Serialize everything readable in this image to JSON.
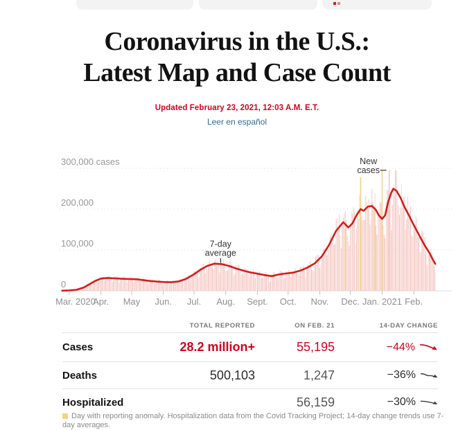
{
  "header": {
    "title_line1": "Coronavirus in the U.S.:",
    "title_line2": "Latest Map and Case Count",
    "updated": "Updated February 23, 2021, 12:03 A.M. E.T.",
    "language_link": "Leer en español"
  },
  "chart_data": {
    "type": "bar",
    "description": "Daily reported new coronavirus cases in the U.S. (bars) with 7-day average (line)",
    "y_axis": {
      "ticks": [
        [
          "300,000 cases",
          300000
        ],
        [
          "200,000",
          200000
        ],
        [
          "100,000",
          100000
        ],
        [
          "0",
          0
        ]
      ],
      "ylim": [
        0,
        320000
      ],
      "grid": "dotted"
    },
    "x_axis": {
      "ticks": [
        [
          "Mar. 2020",
          "2020-03-01"
        ],
        [
          "Apr.",
          "2020-04-01"
        ],
        [
          "May",
          "2020-05-01"
        ],
        [
          "Jun.",
          "2020-06-01"
        ],
        [
          "Jul.",
          "2020-07-01"
        ],
        [
          "Aug.",
          "2020-08-01"
        ],
        [
          "Sept.",
          "2020-09-01"
        ],
        [
          "Oct.",
          "2020-10-01"
        ],
        [
          "Nov.",
          "2020-11-01"
        ],
        [
          "Dec.",
          "2020-12-01"
        ],
        [
          "Jan. 2021",
          "2021-01-01"
        ],
        [
          "Feb.",
          "2021-02-01"
        ]
      ]
    },
    "line_series": {
      "name": "7-day average",
      "points": [
        [
          "2020-02-23",
          300
        ],
        [
          "2020-03-01",
          1000
        ],
        [
          "2020-03-08",
          2500
        ],
        [
          "2020-03-15",
          8000
        ],
        [
          "2020-03-22",
          18000
        ],
        [
          "2020-03-27",
          25000
        ],
        [
          "2020-04-01",
          30000
        ],
        [
          "2020-04-07",
          31500
        ],
        [
          "2020-04-14",
          30500
        ],
        [
          "2020-04-21",
          29500
        ],
        [
          "2020-04-28",
          29000
        ],
        [
          "2020-05-05",
          28500
        ],
        [
          "2020-05-12",
          26500
        ],
        [
          "2020-05-19",
          24000
        ],
        [
          "2020-05-26",
          22500
        ],
        [
          "2020-06-02",
          21500
        ],
        [
          "2020-06-09",
          21000
        ],
        [
          "2020-06-16",
          23000
        ],
        [
          "2020-06-23",
          29000
        ],
        [
          "2020-06-30",
          39000
        ],
        [
          "2020-07-07",
          51000
        ],
        [
          "2020-07-14",
          61000
        ],
        [
          "2020-07-21",
          66500
        ],
        [
          "2020-07-28",
          65500
        ],
        [
          "2020-08-04",
          61000
        ],
        [
          "2020-08-11",
          55000
        ],
        [
          "2020-08-18",
          49500
        ],
        [
          "2020-08-25",
          45000
        ],
        [
          "2020-09-01",
          42000
        ],
        [
          "2020-09-08",
          38500
        ],
        [
          "2020-09-15",
          36000
        ],
        [
          "2020-09-22",
          40000
        ],
        [
          "2020-09-29",
          42500
        ],
        [
          "2020-10-06",
          44500
        ],
        [
          "2020-10-13",
          49500
        ],
        [
          "2020-10-20",
          57000
        ],
        [
          "2020-10-27",
          67000
        ],
        [
          "2020-11-03",
          84000
        ],
        [
          "2020-11-10",
          112000
        ],
        [
          "2020-11-17",
          147000
        ],
        [
          "2020-11-24",
          168000
        ],
        [
          "2020-11-29",
          155000
        ],
        [
          "2020-12-03",
          165000
        ],
        [
          "2020-12-07",
          185000
        ],
        [
          "2020-12-11",
          200000
        ],
        [
          "2020-12-14",
          196000
        ],
        [
          "2020-12-18",
          206000
        ],
        [
          "2020-12-22",
          208000
        ],
        [
          "2020-12-26",
          198000
        ],
        [
          "2020-12-29",
          184000
        ],
        [
          "2021-01-01",
          176000
        ],
        [
          "2021-01-04",
          185000
        ],
        [
          "2021-01-07",
          218000
        ],
        [
          "2021-01-10",
          240000
        ],
        [
          "2021-01-12",
          250000
        ],
        [
          "2021-01-15",
          245000
        ],
        [
          "2021-01-19",
          228000
        ],
        [
          "2021-01-23",
          205000
        ],
        [
          "2021-01-27",
          186000
        ],
        [
          "2021-01-31",
          166000
        ],
        [
          "2021-02-04",
          147000
        ],
        [
          "2021-02-08",
          128000
        ],
        [
          "2021-02-12",
          110000
        ],
        [
          "2021-02-16",
          94000
        ],
        [
          "2021-02-19",
          80000
        ],
        [
          "2021-02-22",
          66000
        ]
      ]
    },
    "anomalies": [
      [
        "2020-11-26",
        152000
      ],
      [
        "2020-12-11",
        278000
      ],
      [
        "2020-12-25",
        205000
      ],
      [
        "2021-01-01",
        295000
      ]
    ],
    "peak_bar": [
      "2021-01-08",
      295000
    ],
    "annotations": [
      {
        "text": "New cases",
        "date": "2021-01-08",
        "value": 295000,
        "pointer": "right"
      },
      {
        "text": "7-day average",
        "date": "2020-07-27",
        "value": 65000,
        "pointer": "down"
      }
    ],
    "colors": {
      "bar": "#f5c6c1",
      "anomaly": "#f2d488",
      "line": "#d31d1a",
      "grid": "#d8d8d8",
      "axis_text": "#969696"
    }
  },
  "summary_table": {
    "headers": [
      "TOTAL REPORTED",
      "ON FEB. 21",
      "14-DAY CHANGE"
    ],
    "rows": [
      {
        "label": "Cases",
        "total": "28.2 million+",
        "on_date": "55,195",
        "change": "−44%",
        "trend": "down"
      },
      {
        "label": "Deaths",
        "total": "500,103",
        "on_date": "1,247",
        "change": "−36%",
        "trend": "down"
      },
      {
        "label": "Hospitalized",
        "total": "",
        "on_date": "56,159",
        "change": "−30%",
        "trend": "down"
      }
    ]
  },
  "footnote": {
    "text": "Day with reporting anomaly. Hospitalization data from the Covid Tracking Project; 14-day change trends use 7-day averages."
  }
}
